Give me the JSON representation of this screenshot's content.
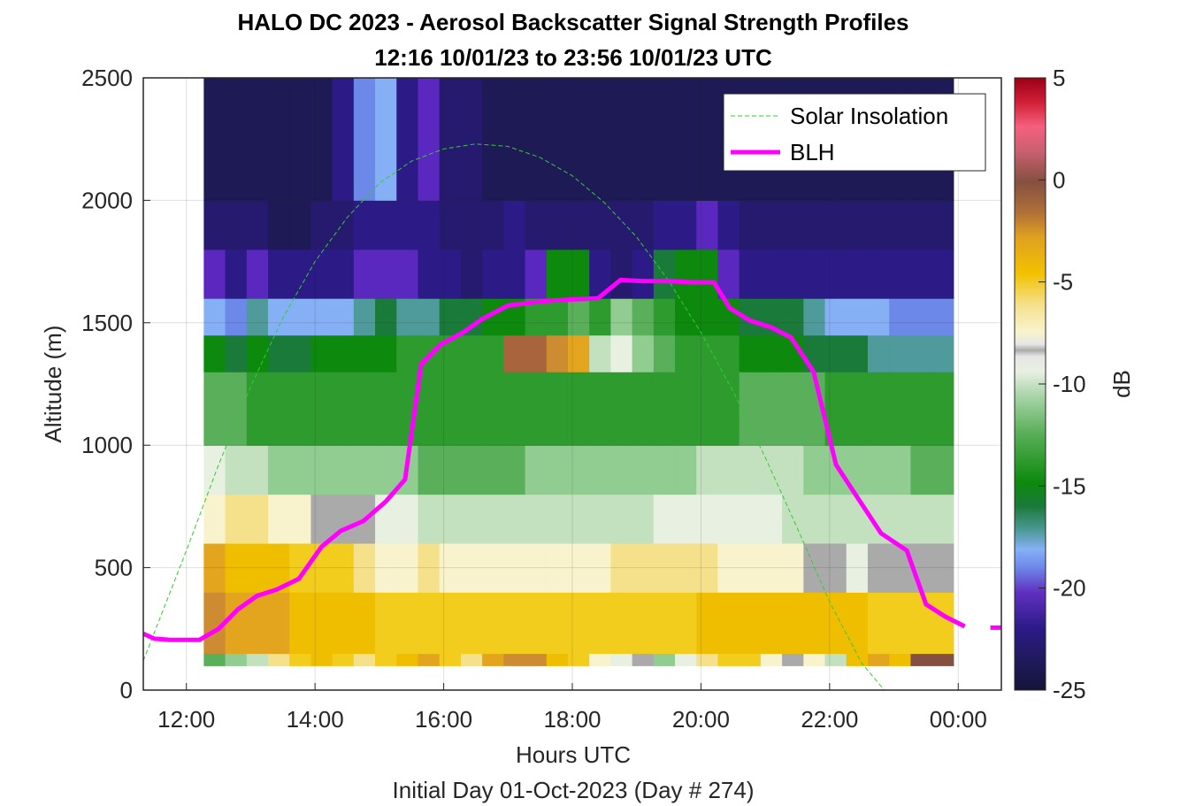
{
  "chart_data": {
    "type": "heatmap",
    "title": "HALO DC 2023 - Aerosol Backscatter Signal Strength Profiles",
    "subtitle": "12:16 10/01/23 to 23:56 10/01/23  UTC",
    "xlabel": "Hours UTC",
    "footnote": "Initial Day 01-Oct-2023 (Day # 274)",
    "ylabel": "Altitude (m)",
    "colorbar_label": "dB",
    "xlim": [
      11.33,
      24.67
    ],
    "ylim": [
      0,
      2500
    ],
    "clim": [
      -25,
      5
    ],
    "x_tick_values": [
      12,
      14,
      16,
      18,
      20,
      22,
      24
    ],
    "x_tick_labels": [
      "12:00",
      "14:00",
      "16:00",
      "18:00",
      "20:00",
      "22:00",
      "00:00"
    ],
    "y_tick_values": [
      0,
      500,
      1000,
      1500,
      2000,
      2500
    ],
    "y_tick_labels": [
      "0",
      "500",
      "1000",
      "1500",
      "2000",
      "2500"
    ],
    "colorbar_ticks": [
      5,
      0,
      -5,
      -10,
      -15,
      -20,
      -25
    ],
    "colorbar_tick_labels": [
      "5",
      "0",
      "-5",
      "-10",
      "-15",
      "-20",
      "-25"
    ],
    "grid": true,
    "legend_position": "top-right",
    "heatmap": {
      "x_start": 12.27,
      "x_step": 0.333,
      "time_columns": 35,
      "altitude_bins": [
        [
          100,
          150
        ],
        [
          150,
          400
        ],
        [
          400,
          600
        ],
        [
          600,
          800
        ],
        [
          800,
          1000
        ],
        [
          1000,
          1300
        ],
        [
          1300,
          1450
        ],
        [
          1450,
          1600
        ],
        [
          1600,
          1800
        ],
        [
          1800,
          2000
        ],
        [
          2000,
          2500
        ]
      ],
      "dB_profiles": [
        [
          -14,
          -4,
          -5,
          -9,
          -11,
          -14,
          -16,
          -19,
          -21,
          -23,
          -24
        ],
        [
          -13,
          -5,
          -6,
          -8,
          -12,
          -14,
          -17,
          -20,
          -22,
          -23,
          -24
        ],
        [
          -12,
          -5,
          -6,
          -8,
          -12,
          -15,
          -16,
          -18,
          -21,
          -23,
          -24
        ],
        [
          -8,
          -5,
          -6,
          -9,
          -13,
          -15,
          -17,
          -19,
          -22,
          -24,
          -24
        ],
        [
          -7,
          -6,
          -7,
          -9,
          -13,
          -15,
          -17,
          -19,
          -22,
          -24,
          -24
        ],
        [
          -6,
          -6,
          -7,
          -10,
          -13,
          -15,
          -16,
          -19,
          -22,
          -23,
          -24
        ],
        [
          -7,
          -6,
          -7,
          -10,
          -13,
          -15,
          -16,
          -19,
          -22,
          -23,
          -22
        ],
        [
          -8,
          -6,
          -8,
          -10,
          -13,
          -15,
          -16,
          -18,
          -21,
          -22,
          -20
        ],
        [
          -7,
          -7,
          -9,
          -11,
          -13,
          -15,
          -16,
          -17,
          -21,
          -22,
          -19
        ],
        [
          -6,
          -7,
          -9,
          -11,
          -13,
          -15,
          -15,
          -18,
          -21,
          -22,
          -22
        ],
        [
          -5,
          -7,
          -8,
          -12,
          -14,
          -15,
          -15,
          -18,
          -22,
          -22,
          -21
        ],
        [
          -7,
          -7,
          -9,
          -12,
          -14,
          -15,
          -15,
          -17,
          -22,
          -23,
          -23
        ],
        [
          -8,
          -7,
          -9,
          -12,
          -14,
          -15,
          -15,
          -17,
          -23,
          -23,
          -23
        ],
        [
          -5,
          -7,
          -9,
          -12,
          -14,
          -15,
          -15,
          -16,
          -22,
          -23,
          -24
        ],
        [
          -4,
          -7,
          -9,
          -12,
          -14,
          -15,
          -3,
          -16,
          -22,
          -22,
          -24
        ],
        [
          -4,
          -7,
          -9,
          -12,
          -13,
          -15,
          -3,
          -15,
          -21,
          -23,
          -24
        ],
        [
          -6,
          -7,
          -9,
          -12,
          -13,
          -15,
          -4,
          -15,
          -16,
          -23,
          -24
        ],
        [
          -7,
          -7,
          -9,
          -12,
          -13,
          -15,
          -5,
          -14,
          -16,
          -23,
          -24
        ],
        [
          -9,
          -7,
          -9,
          -12,
          -13,
          -15,
          -12,
          -15,
          -22,
          -23,
          -24
        ],
        [
          -11,
          -7,
          -8,
          -12,
          -13,
          -15,
          -11,
          -13,
          -23,
          -23,
          -24
        ],
        [
          -10,
          -7,
          -8,
          -12,
          -13,
          -15,
          -13,
          -14,
          -22,
          -23,
          -24
        ],
        [
          -13,
          -7,
          -8,
          -11,
          -13,
          -15,
          -14,
          -15,
          -17,
          -22,
          -24
        ],
        [
          -11,
          -7,
          -8,
          -11,
          -13,
          -15,
          -15,
          -16,
          -16,
          -22,
          -24
        ],
        [
          -8,
          -6,
          -8,
          -11,
          -12,
          -15,
          -15,
          -16,
          -16,
          -21,
          -24
        ],
        [
          -7,
          -6,
          -9,
          -11,
          -12,
          -15,
          -15,
          -16,
          -21,
          -22,
          -24
        ],
        [
          -7,
          -6,
          -9,
          -11,
          -12,
          -14,
          -16,
          -17,
          -22,
          -23,
          -24
        ],
        [
          -9,
          -6,
          -9,
          -11,
          -12,
          -14,
          -16,
          -17,
          -22,
          -23,
          -24
        ],
        [
          -10,
          -6,
          -9,
          -12,
          -12,
          -14,
          -16,
          -17,
          -22,
          -23,
          -24
        ],
        [
          -9,
          -6,
          -10,
          -12,
          -13,
          -14,
          -17,
          -18,
          -22,
          -23,
          -24
        ],
        [
          -12,
          -6,
          -10,
          -12,
          -13,
          -15,
          -17,
          -19,
          -22,
          -23,
          -24
        ],
        [
          -6,
          -6,
          -11,
          -12,
          -13,
          -15,
          -17,
          -19,
          -22,
          -23,
          -24
        ],
        [
          -5,
          -7,
          -10,
          -12,
          -13,
          -15,
          -18,
          -19,
          -22,
          -23,
          -24
        ],
        [
          -6,
          -7,
          -10,
          -12,
          -13,
          -15,
          -18,
          -20,
          -22,
          -23,
          -24
        ],
        [
          -2,
          -7,
          -10,
          -12,
          -14,
          -15,
          -18,
          -20,
          -22,
          -23,
          -24
        ],
        [
          -2,
          -7,
          -10,
          -12,
          -14,
          -15,
          -18,
          -20,
          -22,
          -23,
          -24
        ]
      ]
    },
    "series": [
      {
        "name": "Solar Insolation",
        "style": "dashed",
        "color": "#33cc33",
        "x": [
          11.33,
          12.0,
          12.5,
          13.0,
          13.5,
          14.0,
          14.5,
          15.0,
          15.5,
          16.0,
          16.5,
          17.0,
          17.5,
          18.0,
          18.5,
          19.0,
          19.5,
          20.0,
          20.5,
          21.0,
          21.5,
          22.0,
          22.5,
          22.85,
          23.0,
          24.67
        ],
        "y": [
          120,
          570,
          920,
          1240,
          1520,
          1750,
          1930,
          2070,
          2160,
          2210,
          2230,
          2220,
          2175,
          2100,
          1990,
          1850,
          1670,
          1460,
          1220,
          950,
          660,
          360,
          110,
          0,
          0,
          0
        ]
      },
      {
        "name": "BLH",
        "style": "solid",
        "color": "#ff00ff",
        "segments": [
          {
            "x": [
              11.33,
              11.5,
              11.75,
              12.0,
              12.2,
              12.5,
              12.8,
              13.1,
              13.4,
              13.75,
              14.1,
              14.4,
              14.75,
              15.1,
              15.4,
              15.65,
              15.95,
              16.3,
              16.6,
              17.0,
              17.3,
              17.65,
              18.0,
              18.4,
              18.75,
              19.1,
              19.5,
              19.85,
              20.2,
              20.45,
              20.75,
              21.1,
              21.4,
              21.75,
              22.1,
              22.4,
              22.8,
              23.2,
              23.5,
              23.8,
              24.1
            ],
            "y": [
              230,
              210,
              205,
              205,
              205,
              250,
              330,
              385,
              410,
              455,
              585,
              650,
              690,
              770,
              860,
              1330,
              1410,
              1460,
              1515,
              1570,
              1580,
              1590,
              1595,
              1600,
              1675,
              1670,
              1670,
              1665,
              1665,
              1560,
              1510,
              1480,
              1440,
              1300,
              920,
              800,
              640,
              570,
              350,
              300,
              260
            ]
          },
          {
            "x": [
              24.5,
              24.67
            ],
            "y": [
              255,
              255
            ]
          }
        ]
      }
    ]
  }
}
